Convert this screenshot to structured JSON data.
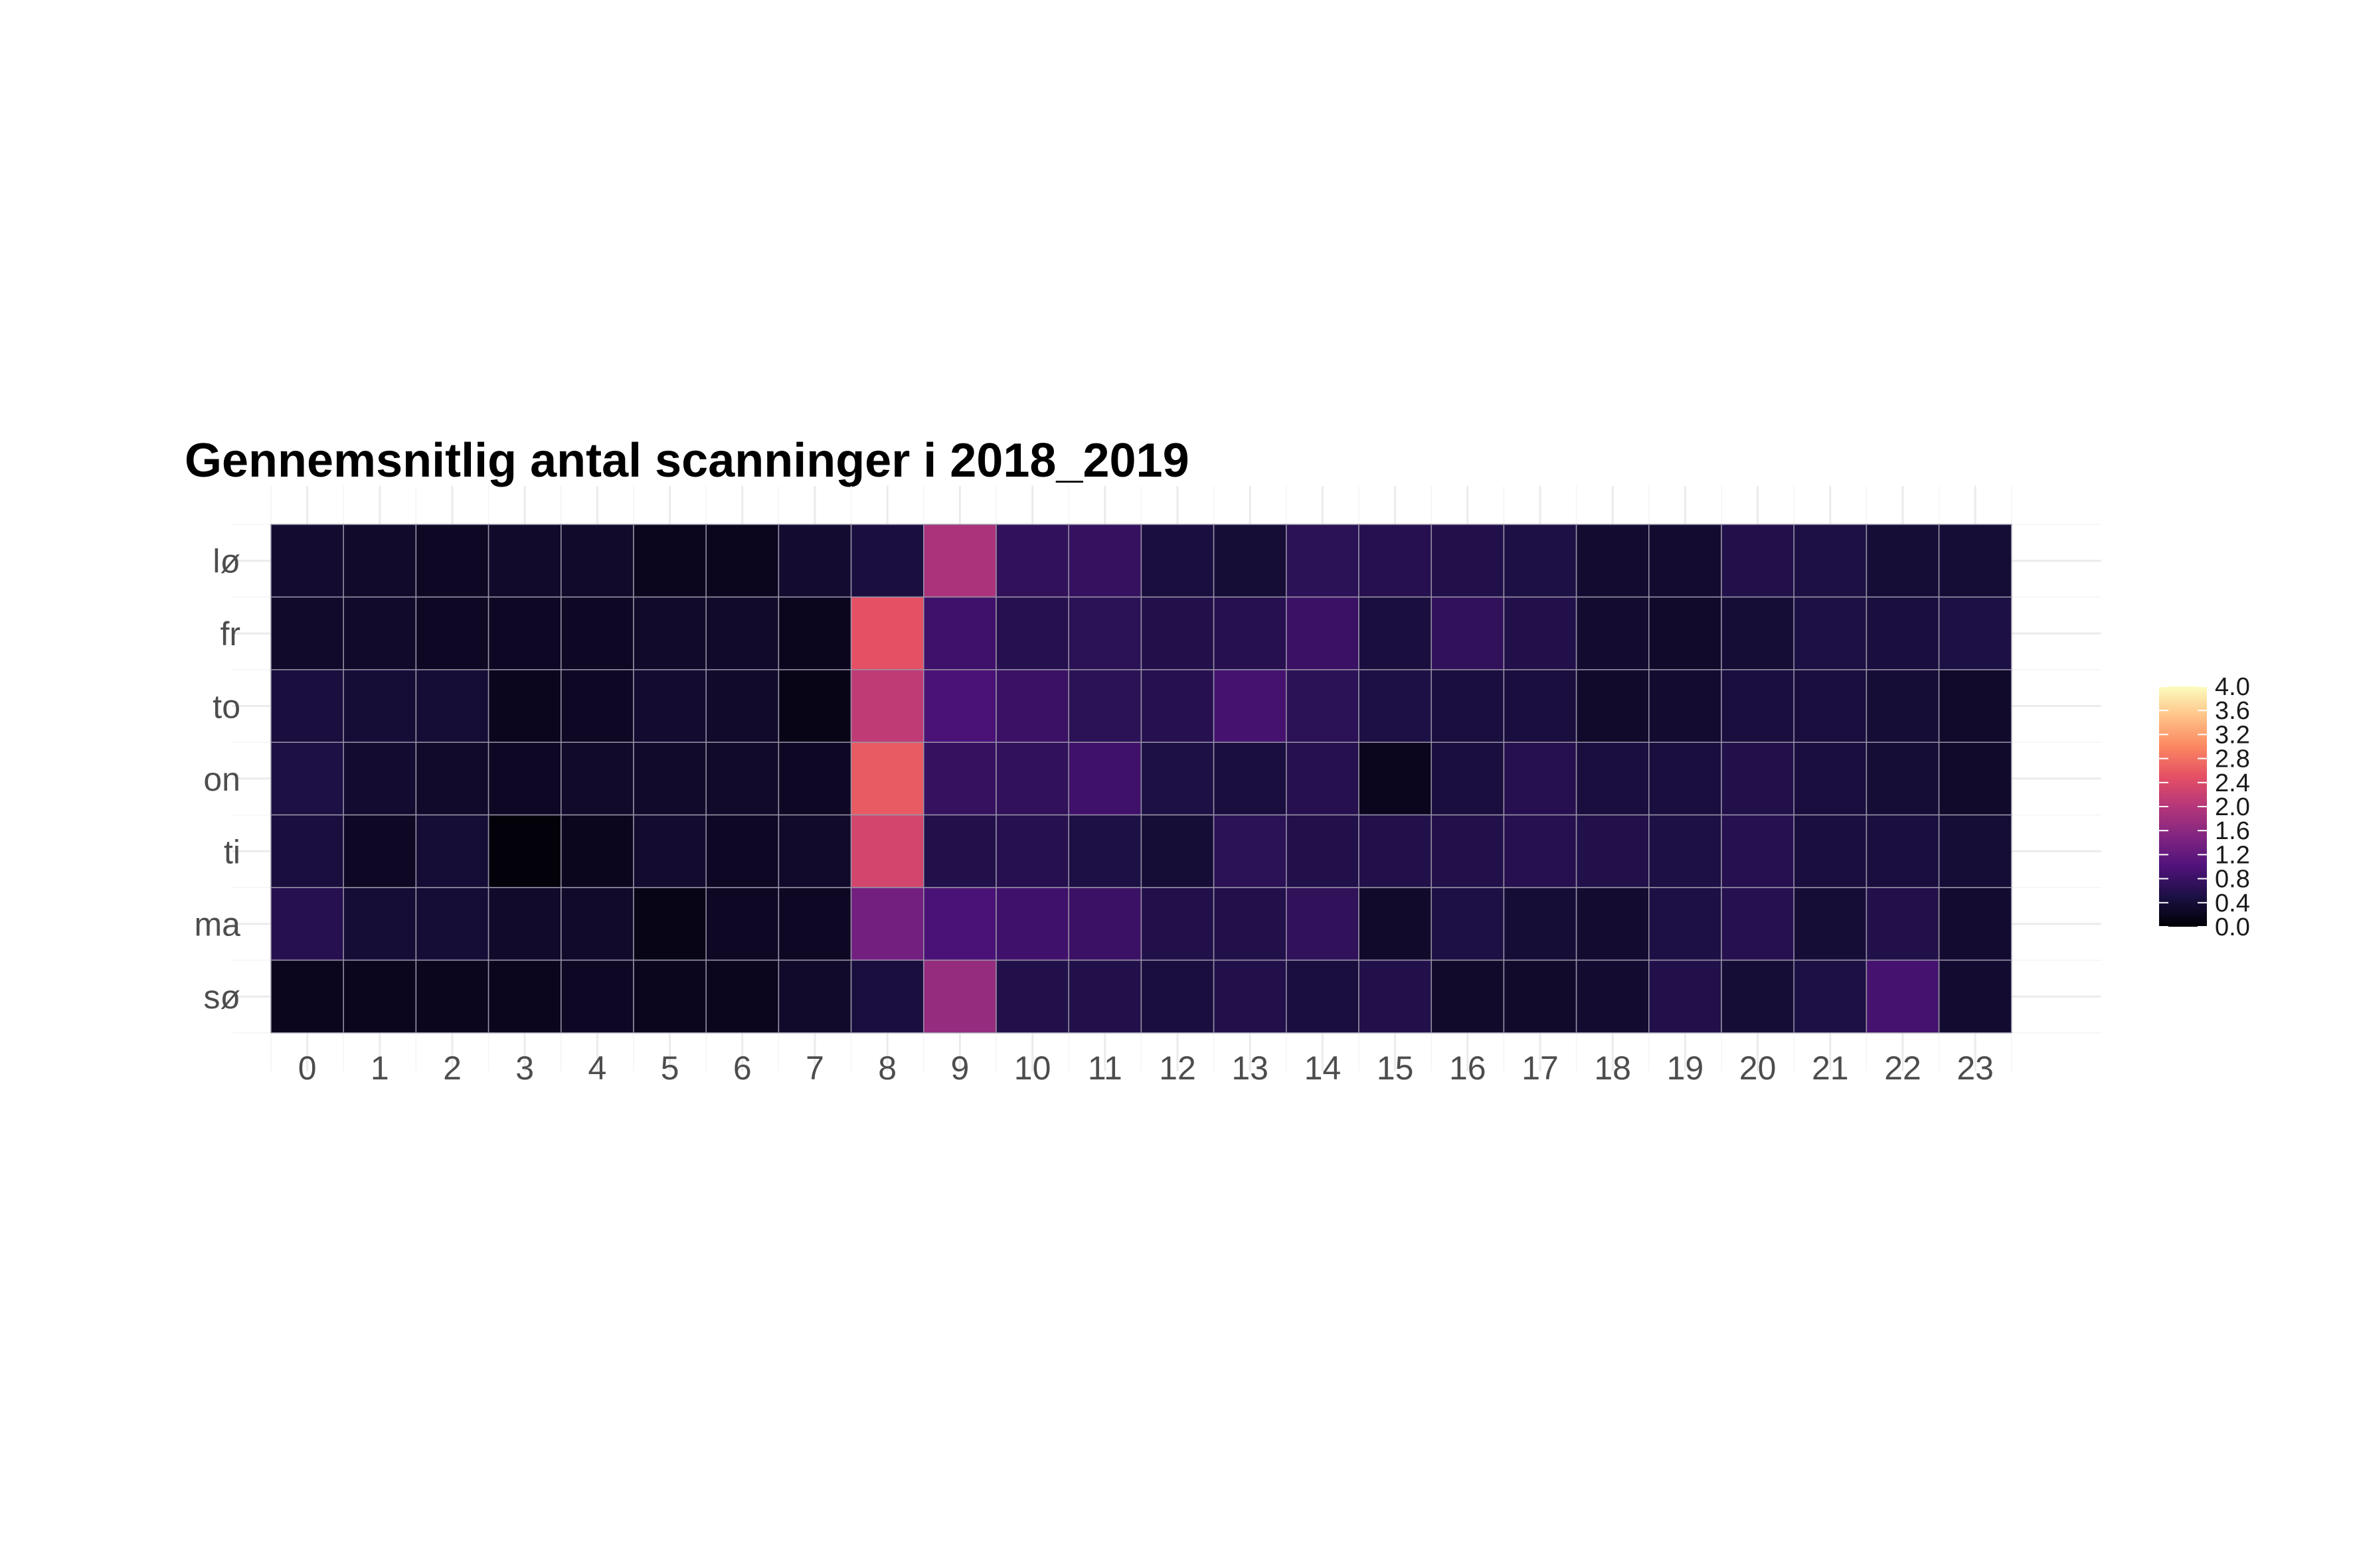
{
  "chart_data": {
    "type": "heatmap",
    "title": "Gennemsnitlig antal scanninger i 2018_2019",
    "xlabel": "",
    "ylabel": "",
    "x_categories": [
      "0",
      "1",
      "2",
      "3",
      "4",
      "5",
      "6",
      "7",
      "8",
      "9",
      "10",
      "11",
      "12",
      "13",
      "14",
      "15",
      "16",
      "17",
      "18",
      "19",
      "20",
      "21",
      "22",
      "23"
    ],
    "y_categories": [
      "lø",
      "fr",
      "to",
      "on",
      "ti",
      "ma",
      "sø"
    ],
    "values": [
      [
        0.35,
        0.3,
        0.25,
        0.3,
        0.3,
        0.2,
        0.2,
        0.35,
        0.45,
        1.9,
        0.7,
        0.75,
        0.45,
        0.4,
        0.65,
        0.6,
        0.55,
        0.5,
        0.35,
        0.35,
        0.55,
        0.5,
        0.4,
        0.4
      ],
      [
        0.3,
        0.3,
        0.25,
        0.25,
        0.25,
        0.3,
        0.3,
        0.2,
        2.5,
        0.85,
        0.6,
        0.65,
        0.55,
        0.6,
        0.8,
        0.45,
        0.7,
        0.55,
        0.35,
        0.3,
        0.4,
        0.5,
        0.45,
        0.5
      ],
      [
        0.45,
        0.4,
        0.4,
        0.2,
        0.25,
        0.35,
        0.3,
        0.15,
        2.1,
        0.95,
        0.8,
        0.65,
        0.6,
        0.9,
        0.65,
        0.5,
        0.45,
        0.45,
        0.3,
        0.35,
        0.45,
        0.45,
        0.4,
        0.3
      ],
      [
        0.5,
        0.35,
        0.3,
        0.25,
        0.3,
        0.3,
        0.3,
        0.25,
        2.6,
        0.75,
        0.7,
        0.85,
        0.5,
        0.45,
        0.6,
        0.2,
        0.45,
        0.6,
        0.45,
        0.45,
        0.55,
        0.45,
        0.4,
        0.3
      ],
      [
        0.45,
        0.25,
        0.4,
        0.05,
        0.2,
        0.35,
        0.25,
        0.3,
        2.3,
        0.55,
        0.6,
        0.5,
        0.4,
        0.65,
        0.55,
        0.55,
        0.55,
        0.6,
        0.55,
        0.5,
        0.6,
        0.45,
        0.45,
        0.4
      ],
      [
        0.6,
        0.4,
        0.4,
        0.3,
        0.3,
        0.15,
        0.25,
        0.25,
        1.35,
        0.95,
        0.85,
        0.8,
        0.55,
        0.55,
        0.7,
        0.3,
        0.5,
        0.4,
        0.35,
        0.5,
        0.6,
        0.4,
        0.55,
        0.35
      ],
      [
        0.2,
        0.2,
        0.2,
        0.2,
        0.25,
        0.2,
        0.2,
        0.3,
        0.45,
        1.7,
        0.55,
        0.55,
        0.45,
        0.55,
        0.45,
        0.55,
        0.3,
        0.3,
        0.35,
        0.55,
        0.4,
        0.5,
        0.9,
        0.35
      ]
    ],
    "scale": {
      "min": 0.0,
      "max": 4.0,
      "palette": "magma"
    },
    "legend": {
      "position": "right",
      "ticks": [
        "0.0",
        "0.4",
        "0.8",
        "1.2",
        "1.6",
        "2.0",
        "2.4",
        "2.8",
        "3.2",
        "3.6",
        "4.0"
      ]
    },
    "grid": true
  }
}
